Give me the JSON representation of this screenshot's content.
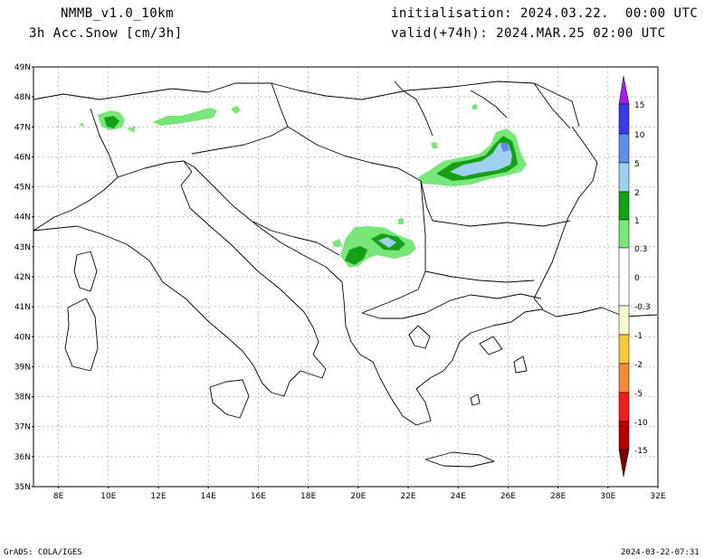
{
  "header": {
    "model": "NMMB_v1.0_10km",
    "variable": "3h Acc.Snow [cm/3h]",
    "init": "initialisation: 2024.03.22.  00:00 UTC",
    "valid": "valid(+74h): 2024.MAR.25 02:00 UTC"
  },
  "map": {
    "lat_ticks": [
      "49N",
      "48N",
      "47N",
      "46N",
      "45N",
      "44N",
      "43N",
      "42N",
      "41N",
      "40N",
      "39N",
      "38N",
      "37N",
      "36N",
      "35N"
    ],
    "lon_ticks": [
      "8E",
      "10E",
      "12E",
      "14E",
      "16E",
      "18E",
      "20E",
      "22E",
      "24E",
      "26E",
      "28E",
      "30E",
      "32E"
    ],
    "lon_range": [
      7,
      32
    ],
    "lat_range": [
      35,
      49
    ],
    "grid": true
  },
  "legend": {
    "labels": [
      "15",
      "10",
      "5",
      "2",
      "1",
      "0.3",
      "0",
      "-0.3",
      "-1",
      "-2",
      "-5",
      "-10",
      "-15"
    ],
    "colors": {
      "top_arrow": "#a020f0",
      "c10_15": "#3a3ae8",
      "c5_10": "#5f8de8",
      "c2_5": "#a0d0f0",
      "c1_2": "#16a016",
      "c03_1": "#78e678",
      "neutral": "#ffffff",
      "n03_1": "#fafad0",
      "n1_2": "#f5c842",
      "n2_5": "#f08c3c",
      "n5_10": "#f01e1e",
      "n10_15": "#b40000",
      "bottom_arrow": "#780000"
    }
  },
  "footer": {
    "left": "GrADS: COLA/IGES",
    "right": "2024-03-22-07:31"
  }
}
